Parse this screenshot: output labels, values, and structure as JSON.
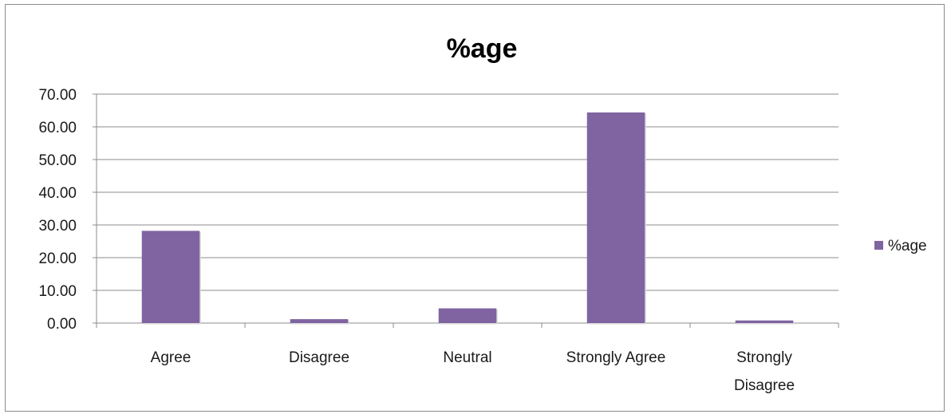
{
  "chart_data": {
    "type": "bar",
    "title": "%age",
    "categories": [
      [
        "Agree"
      ],
      [
        "Disagree"
      ],
      [
        "Neutral"
      ],
      [
        "Strongly Agree"
      ],
      [
        "Strongly",
        "Disagree"
      ]
    ],
    "series": [
      {
        "name": "%age",
        "values": [
          28.2,
          1.2,
          4.5,
          64.4,
          0.8
        ]
      }
    ],
    "y_ticks": [
      "0.00",
      "10.00",
      "20.00",
      "30.00",
      "40.00",
      "50.00",
      "60.00",
      "70.00"
    ],
    "ylim": [
      0,
      70
    ],
    "grid": true,
    "legend_position": "right",
    "bar_color": "#8064A2"
  }
}
